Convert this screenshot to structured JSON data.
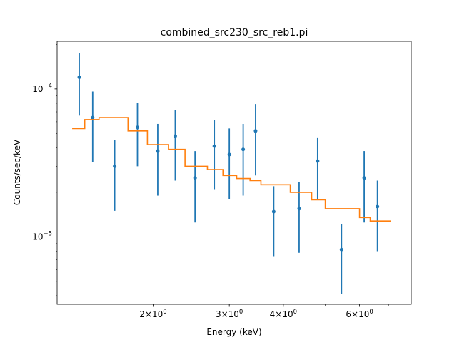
{
  "chart_data": {
    "type": "scatter",
    "title": "combined_src230_src_reb1.pi",
    "xlabel": "Energy (keV)",
    "ylabel": "Counts/sec/keV",
    "xscale": "log",
    "yscale": "log",
    "xlim": [
      1.2,
      7.9
    ],
    "ylim": [
      3.5e-06,
      0.00021
    ],
    "grid": false,
    "x_major_ticks": [
      {
        "value": 2,
        "label_base": "2×10",
        "label_exp": "0"
      },
      {
        "value": 3,
        "label_base": "3×10",
        "label_exp": "0"
      },
      {
        "value": 4,
        "label_base": "4×10",
        "label_exp": "0"
      },
      {
        "value": 6,
        "label_base": "6×10",
        "label_exp": "0"
      }
    ],
    "x_minor_ticks": [
      5,
      7
    ],
    "y_major_ticks": [
      {
        "value": 1e-05,
        "label_base": "10",
        "label_exp": "−5"
      },
      {
        "value": 0.0001,
        "label_base": "10",
        "label_exp": "−4"
      }
    ],
    "y_minor_ticks": [
      4e-06,
      5e-06,
      6e-06,
      7e-06,
      8e-06,
      9e-06,
      2e-05,
      3e-05,
      4e-05,
      5e-05,
      6e-05,
      7e-05,
      8e-05,
      9e-05,
      0.0002
    ],
    "series": [
      {
        "kind": "data-with-errors",
        "color": "#1f77b4",
        "points": [
          {
            "x": 1.35,
            "y": 0.00012,
            "ylo": 6.6e-05,
            "yhi": 0.000175
          },
          {
            "x": 1.45,
            "y": 6.4e-05,
            "ylo": 3.2e-05,
            "yhi": 9.6e-05
          },
          {
            "x": 1.63,
            "y": 3e-05,
            "ylo": 1.5e-05,
            "yhi": 4.5e-05
          },
          {
            "x": 1.84,
            "y": 5.5e-05,
            "ylo": 3e-05,
            "yhi": 8e-05
          },
          {
            "x": 2.05,
            "y": 3.8e-05,
            "ylo": 1.9e-05,
            "yhi": 5.8e-05
          },
          {
            "x": 2.25,
            "y": 4.8e-05,
            "ylo": 2.4e-05,
            "yhi": 7.2e-05
          },
          {
            "x": 2.5,
            "y": 2.5e-05,
            "ylo": 1.25e-05,
            "yhi": 3.8e-05
          },
          {
            "x": 2.77,
            "y": 4.1e-05,
            "ylo": 2.1e-05,
            "yhi": 6.2e-05
          },
          {
            "x": 3.0,
            "y": 3.6e-05,
            "ylo": 1.8e-05,
            "yhi": 5.4e-05
          },
          {
            "x": 3.23,
            "y": 3.9e-05,
            "ylo": 1.9e-05,
            "yhi": 5.8e-05
          },
          {
            "x": 3.45,
            "y": 5.2e-05,
            "ylo": 2.6e-05,
            "yhi": 7.9e-05
          },
          {
            "x": 3.8,
            "y": 1.48e-05,
            "ylo": 7.4e-06,
            "yhi": 2.2e-05
          },
          {
            "x": 4.35,
            "y": 1.55e-05,
            "ylo": 7.8e-06,
            "yhi": 2.35e-05
          },
          {
            "x": 4.8,
            "y": 3.25e-05,
            "ylo": 1.8e-05,
            "yhi": 4.7e-05
          },
          {
            "x": 5.45,
            "y": 8.2e-06,
            "ylo": 4.1e-06,
            "yhi": 1.22e-05
          },
          {
            "x": 6.15,
            "y": 2.5e-05,
            "ylo": 1.25e-05,
            "yhi": 3.8e-05
          },
          {
            "x": 6.6,
            "y": 1.6e-05,
            "ylo": 8e-06,
            "yhi": 2.4e-05
          }
        ]
      },
      {
        "kind": "model-step",
        "color": "#ff7f0e",
        "bins": [
          {
            "xlo": 1.3,
            "xhi": 1.39,
            "y": 5.4e-05
          },
          {
            "xlo": 1.39,
            "xhi": 1.5,
            "y": 6.2e-05
          },
          {
            "xlo": 1.5,
            "xhi": 1.75,
            "y": 6.4e-05
          },
          {
            "xlo": 1.75,
            "xhi": 1.94,
            "y": 5.2e-05
          },
          {
            "xlo": 1.94,
            "xhi": 2.17,
            "y": 4.2e-05
          },
          {
            "xlo": 2.17,
            "xhi": 2.37,
            "y": 3.9e-05
          },
          {
            "xlo": 2.37,
            "xhi": 2.67,
            "y": 3e-05
          },
          {
            "xlo": 2.67,
            "xhi": 2.9,
            "y": 2.85e-05
          },
          {
            "xlo": 2.9,
            "xhi": 3.12,
            "y": 2.6e-05
          },
          {
            "xlo": 3.12,
            "xhi": 3.35,
            "y": 2.48e-05
          },
          {
            "xlo": 3.35,
            "xhi": 3.55,
            "y": 2.4e-05
          },
          {
            "xlo": 3.55,
            "xhi": 4.15,
            "y": 2.25e-05
          },
          {
            "xlo": 4.15,
            "xhi": 4.65,
            "y": 2e-05
          },
          {
            "xlo": 4.65,
            "xhi": 5.0,
            "y": 1.78e-05
          },
          {
            "xlo": 5.0,
            "xhi": 6.0,
            "y": 1.55e-05
          },
          {
            "xlo": 6.0,
            "xhi": 6.35,
            "y": 1.35e-05
          },
          {
            "xlo": 6.35,
            "xhi": 7.1,
            "y": 1.28e-05
          }
        ]
      }
    ]
  }
}
